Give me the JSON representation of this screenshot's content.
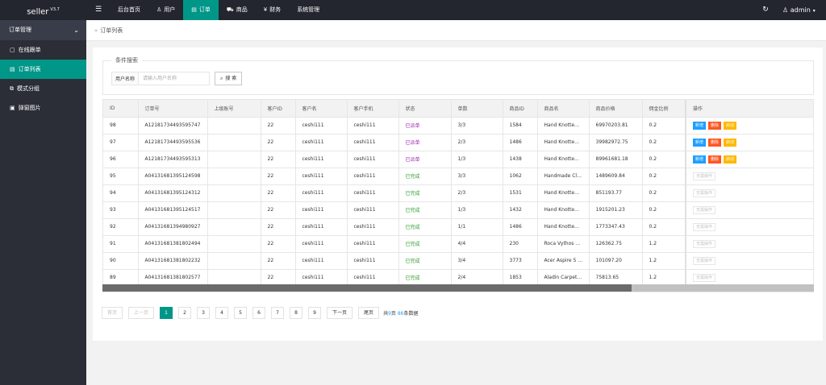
{
  "app": {
    "logo": "seller",
    "version": "V3.7"
  },
  "topnav": {
    "toggle_icon": "☰",
    "items": [
      {
        "label": "后台首页",
        "icon": "",
        "active": false
      },
      {
        "label": "用户",
        "icon": "♙",
        "active": false
      },
      {
        "label": "订单",
        "icon": "▤",
        "active": true
      },
      {
        "label": "商品",
        "icon": "⛟",
        "active": false
      },
      {
        "label": "财务",
        "icon": "¥",
        "active": false
      },
      {
        "label": "系统管理",
        "icon": "",
        "active": false
      }
    ],
    "refresh_icon": "↻",
    "user_icon": "♙",
    "user": "admin",
    "user_caret": "▾"
  },
  "sidebar": {
    "group": "订单管理",
    "group_chevron": "⌄",
    "items": [
      {
        "label": "在线跟单",
        "icon": "▢",
        "active": false
      },
      {
        "label": "订单列表",
        "icon": "▤",
        "active": true
      },
      {
        "label": "模式分组",
        "icon": "⧉",
        "active": false
      },
      {
        "label": "弹窗图片",
        "icon": "▣",
        "active": false
      }
    ]
  },
  "breadcrumb": {
    "sep": "»",
    "label": "订单列表"
  },
  "search": {
    "legend": "条件搜索",
    "label": "用户名称",
    "placeholder": "请输入用户名称",
    "button": "搜 索",
    "button_icon": "⌕"
  },
  "table": {
    "columns": [
      "ID",
      "订单号",
      "上级账号",
      "客户ID",
      "客户名",
      "客户手机",
      "状态",
      "单数",
      "商品ID",
      "商品名",
      "商品价格",
      "佣金比例",
      "操作"
    ],
    "action_labels": {
      "add": "新增",
      "delete": "删除",
      "activate": "启动",
      "none": "无需操作"
    },
    "rows": [
      [
        "98",
        "A12181734493595747",
        "",
        "22",
        "ceshi111",
        "ceshi111",
        "已派单",
        "3/3",
        "1584",
        "Hand Knotte…",
        "69970203.81",
        "0.2",
        "pending"
      ],
      [
        "97",
        "A12181734493595536",
        "",
        "22",
        "ceshi111",
        "ceshi111",
        "已派单",
        "2/3",
        "1486",
        "Hand Knotte…",
        "39982972.75",
        "0.2",
        "pending"
      ],
      [
        "96",
        "A12181734493595313",
        "",
        "22",
        "ceshi111",
        "ceshi111",
        "已派单",
        "1/3",
        "1438",
        "Hand Knotte…",
        "89961681.18",
        "0.2",
        "pending"
      ],
      [
        "95",
        "A04131681395124598",
        "",
        "22",
        "ceshi111",
        "ceshi111",
        "已完成",
        "3/3",
        "1062",
        "Handmade Cl…",
        "1489609.84",
        "0.2",
        "done"
      ],
      [
        "94",
        "A04131681395124312",
        "",
        "22",
        "ceshi111",
        "ceshi111",
        "已完成",
        "2/3",
        "1531",
        "Hand Knotte…",
        "851193.77",
        "0.2",
        "done"
      ],
      [
        "93",
        "A04131681395124517",
        "",
        "22",
        "ceshi111",
        "ceshi111",
        "已完成",
        "1/3",
        "1432",
        "Hand Knotte…",
        "1915201.23",
        "0.2",
        "done"
      ],
      [
        "92",
        "A04131681394980927",
        "",
        "22",
        "ceshi111",
        "ceshi111",
        "已完成",
        "1/1",
        "1486",
        "Hand Knotte…",
        "1773347.43",
        "0.2",
        "done"
      ],
      [
        "91",
        "A04131681381802494",
        "",
        "22",
        "ceshi111",
        "ceshi111",
        "已完成",
        "4/4",
        "230",
        "Roca Vythos …",
        "126362.75",
        "1.2",
        "done"
      ],
      [
        "90",
        "A04131681381802232",
        "",
        "22",
        "ceshi111",
        "ceshi111",
        "已完成",
        "3/4",
        "3773",
        "Acer Aspire 5 …",
        "101097.20",
        "1.2",
        "done"
      ],
      [
        "89",
        "A04131681381802577",
        "",
        "22",
        "ceshi111",
        "ceshi111",
        "已完成",
        "2/4",
        "1853",
        "Aladin Carpet…",
        "75813.65",
        "1.2",
        "done"
      ]
    ]
  },
  "scrollbar": {
    "visible_fraction": 0.744
  },
  "pager": {
    "first": "首页",
    "prev": "上一页",
    "pages": [
      "1",
      "2",
      "3",
      "4",
      "5",
      "6",
      "7",
      "8",
      "9"
    ],
    "current": "1",
    "next": "下一页",
    "last": "尾页",
    "total_prefix": "共",
    "total_pages": "9",
    "total_mid": "页 ",
    "total_count": "86",
    "total_suffix": "条数据"
  },
  "colors": {
    "accent": "#009688",
    "topbar": "#23262e",
    "sidebar": "#2b2e37",
    "pending": "#9c27b0",
    "done": "#2e9d2e",
    "add": "#1e9fff",
    "delete": "#ff5722",
    "activate": "#ffb800"
  }
}
